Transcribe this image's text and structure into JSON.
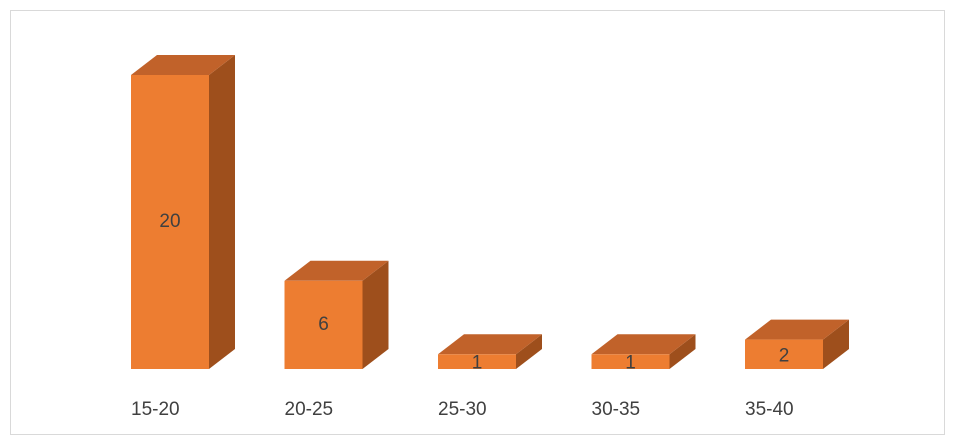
{
  "chart_data": {
    "type": "bar",
    "categories": [
      "15-20",
      "20-25",
      "25-30",
      "30-35",
      "35-40"
    ],
    "values": [
      20,
      6,
      1,
      1,
      2
    ],
    "ylim": [
      0,
      20
    ],
    "grid": false,
    "legend": "none",
    "colors": {
      "front": "#ed7d31",
      "side": "#9e4f1c",
      "top": "#c1622a",
      "frame": "#d9d9d9",
      "text": "#404040"
    }
  }
}
